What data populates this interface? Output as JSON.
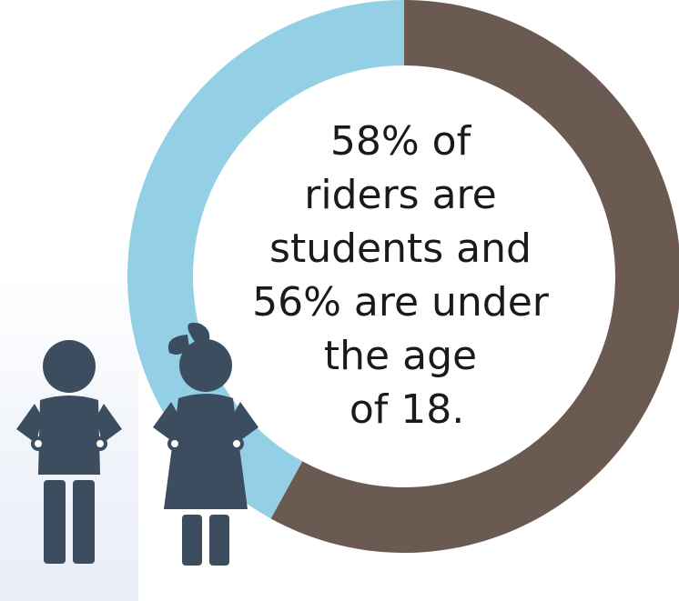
{
  "chart_data": {
    "type": "pie",
    "style": "donut",
    "slices": [
      {
        "label": "",
        "value": 58,
        "color": "#6b5a52"
      },
      {
        "label": "",
        "value": 42,
        "color": "#93d0e6"
      }
    ],
    "center_text": [
      "58% of",
      "riders are",
      "students and",
      "56% are under",
      "the age",
      "of 18."
    ]
  },
  "background_panel_color": "#eef2f8",
  "icons": {
    "left": "boy-student-icon",
    "right": "girl-student-icon"
  }
}
